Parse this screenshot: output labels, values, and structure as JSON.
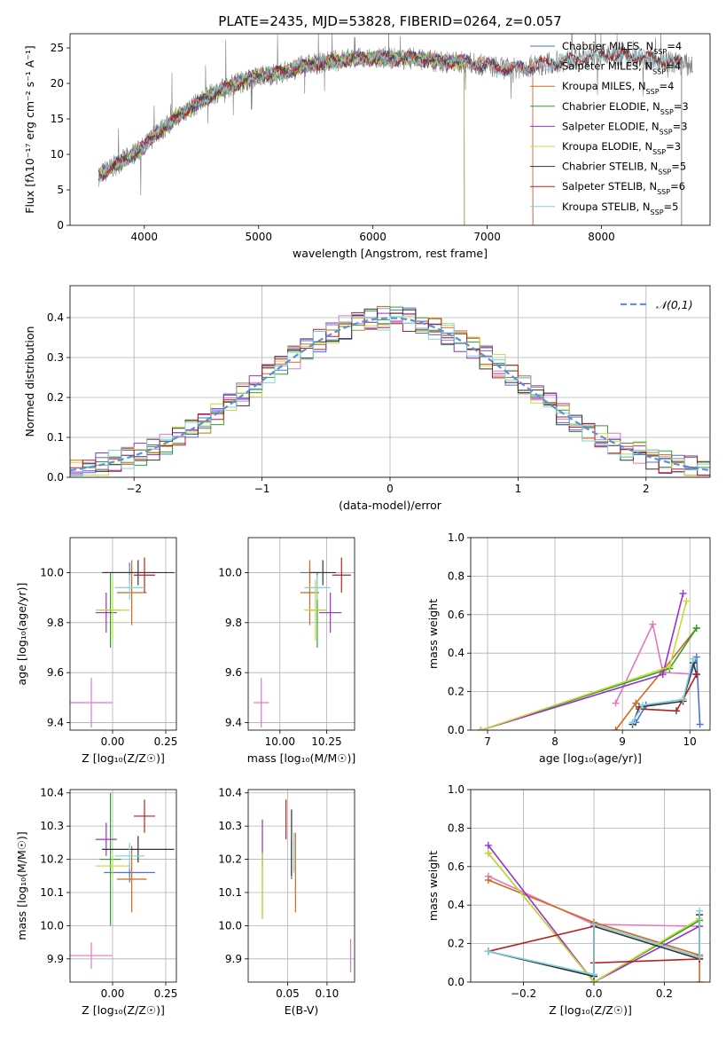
{
  "figure_title": "PLATE=2435, MJD=53828, FIBERID=0264, z=0.057",
  "colors": {
    "Chabrier MILES": "#4c72d4",
    "Salpeter MILES": "#e377c2",
    "Kroupa MILES": "#d2691e",
    "Chabrier ELODIE": "#2ca02c",
    "Salpeter ELODIE": "#9b30c8",
    "Kroupa ELODIE": "#c8d83c",
    "Chabrier STELIB": "#333333",
    "Salpeter STELIB": "#b22222",
    "Kroupa STELIB": "#7fd3dc",
    "data": "#808080",
    "normal": "#5b8fd9"
  },
  "chart_data": [
    {
      "id": "spectrum",
      "type": "line",
      "title": "PLATE=2435, MJD=53828, FIBERID=0264, z=0.057",
      "xlabel": "wavelength [Angstrom, rest frame]",
      "ylabel": "Flux [fλ10⁻¹⁷ erg cm⁻² s⁻¹ A⁻¹]",
      "xlim": [
        3350,
        8950
      ],
      "ylim": [
        0,
        27
      ],
      "xticks": [
        4000,
        5000,
        6000,
        7000,
        8000
      ],
      "yticks": [
        0,
        5,
        10,
        15,
        20,
        25
      ],
      "grid": false,
      "legend": "right",
      "legend_entries": [
        "Chabrier MILES, N_SSP=4",
        "Salpeter MILES, N_SSP=4",
        "Kroupa MILES, N_SSP=4",
        "Chabrier ELODIE, N_SSP=3",
        "Salpeter ELODIE, N_SSP=3",
        "Kroupa ELODIE, N_SSP=3",
        "Chabrier STELIB, N_SSP=5",
        "Salpeter STELIB, N_SSP=6",
        "Kroupa STELIB, N_SSP=5"
      ],
      "continuum": {
        "x": [
          3600,
          3700,
          3800,
          3900,
          4000,
          4100,
          4200,
          4300,
          4400,
          4500,
          4600,
          4800,
          5000,
          5200,
          5400,
          5600,
          5800,
          6000,
          6200,
          6400,
          6600,
          6800,
          7000,
          7200,
          7400,
          7600,
          7800,
          8000,
          8200,
          8400,
          8600,
          8800
        ],
        "y": [
          7,
          8,
          9,
          10,
          11,
          13,
          14,
          15.5,
          16.5,
          17.5,
          18.5,
          20,
          21,
          21.5,
          22.5,
          23,
          23.5,
          23.5,
          23.5,
          23.5,
          23,
          23,
          22.5,
          22,
          22.5,
          23,
          23.5,
          24,
          24,
          23.5,
          23,
          22.5
        ]
      },
      "models_end_x": {
        "MILES": 7400,
        "ELODIE": 6800,
        "STELIB": 8700
      }
    },
    {
      "id": "residuals",
      "type": "line",
      "xlabel": "(data-model)/error",
      "ylabel": "Normed distribution",
      "xlim": [
        -2.5,
        2.5
      ],
      "ylim": [
        0,
        0.48
      ],
      "xticks": [
        -2,
        -1,
        0,
        1,
        2
      ],
      "yticks": [
        0,
        0.1,
        0.2,
        0.3,
        0.4
      ],
      "grid": true,
      "legend": "top-right",
      "legend_entries": [
        "𝒩(0,1)"
      ],
      "histogram": {
        "bin_min": -2.5,
        "bin_max": 2.5,
        "nbins": 50,
        "reference": "N(0,1)"
      }
    },
    {
      "id": "age-vs-Z",
      "type": "scatter",
      "xlabel": "Z [log₁₀(Z/Z☉)]",
      "ylabel": "age  [log₁₀(age/yr)]",
      "xlim": [
        -0.2,
        0.3
      ],
      "ylim": [
        9.37,
        10.14
      ],
      "xticks": [
        0.0,
        0.25
      ],
      "xticklabels": [
        "0.00",
        "0.25"
      ],
      "yticks": [
        9.4,
        9.6,
        9.8,
        10.0
      ],
      "grid": true,
      "points": [
        {
          "model": "Chabrier MILES",
          "x": 0.08,
          "xerr": 0.12,
          "y": 10.0,
          "yerr": 0.04
        },
        {
          "model": "Salpeter MILES",
          "x": -0.1,
          "xerr": 0.1,
          "y": 9.48,
          "yerr": 0.1
        },
        {
          "model": "Kroupa MILES",
          "x": 0.09,
          "xerr": 0.07,
          "y": 9.92,
          "yerr": 0.13
        },
        {
          "model": "Chabrier ELODIE",
          "x": -0.01,
          "xerr": 0.05,
          "y": 9.85,
          "yerr": 0.15
        },
        {
          "model": "Salpeter ELODIE",
          "x": -0.03,
          "xerr": 0.05,
          "y": 9.84,
          "yerr": 0.08
        },
        {
          "model": "Kroupa ELODIE",
          "x": 0.0,
          "xerr": 0.08,
          "y": 9.85,
          "yerr": 0.12
        },
        {
          "model": "Chabrier STELIB",
          "x": 0.12,
          "xerr": 0.17,
          "y": 10.0,
          "yerr": 0.05
        },
        {
          "model": "Salpeter STELIB",
          "x": 0.15,
          "xerr": 0.05,
          "y": 9.99,
          "yerr": 0.07
        },
        {
          "model": "Kroupa STELIB",
          "x": 0.08,
          "xerr": 0.07,
          "y": 9.94,
          "yerr": 0.05
        }
      ]
    },
    {
      "id": "age-vs-mass",
      "type": "scatter",
      "xlabel": "mass [log₁₀(M/M☉)]",
      "ylabel": "",
      "xlim": [
        9.83,
        10.4
      ],
      "ylim": [
        9.37,
        10.14
      ],
      "xticks": [
        10.0,
        10.25
      ],
      "xticklabels": [
        "10.00",
        "10.25"
      ],
      "yticks": [
        9.4,
        9.6,
        9.8,
        10.0
      ],
      "grid": true,
      "points": [
        {
          "model": "Chabrier MILES",
          "x": 10.16,
          "xerr": 0.05,
          "y": 10.0,
          "yerr": 0.04
        },
        {
          "model": "Salpeter MILES",
          "x": 9.9,
          "xerr": 0.04,
          "y": 9.48,
          "yerr": 0.1
        },
        {
          "model": "Kroupa MILES",
          "x": 10.16,
          "xerr": 0.05,
          "y": 9.92,
          "yerr": 0.13
        },
        {
          "model": "Chabrier ELODIE",
          "x": 10.2,
          "xerr": 0.04,
          "y": 9.85,
          "yerr": 0.15
        },
        {
          "model": "Salpeter ELODIE",
          "x": 10.27,
          "xerr": 0.06,
          "y": 9.84,
          "yerr": 0.08
        },
        {
          "model": "Kroupa ELODIE",
          "x": 10.19,
          "xerr": 0.06,
          "y": 9.85,
          "yerr": 0.12
        },
        {
          "model": "Chabrier STELIB",
          "x": 10.23,
          "xerr": 0.07,
          "y": 10.0,
          "yerr": 0.05
        },
        {
          "model": "Salpeter STELIB",
          "x": 10.33,
          "xerr": 0.05,
          "y": 9.99,
          "yerr": 0.07
        },
        {
          "model": "Kroupa STELIB",
          "x": 10.2,
          "xerr": 0.07,
          "y": 9.94,
          "yerr": 0.05
        }
      ]
    },
    {
      "id": "weight-vs-age",
      "type": "line",
      "xlabel": "age  [log₁₀(age/yr)]",
      "ylabel": "mass weight",
      "xlim": [
        6.75,
        10.3
      ],
      "ylim": [
        0,
        1
      ],
      "xticks": [
        7,
        8,
        9,
        10
      ],
      "yticks": [
        0,
        0.2,
        0.4,
        0.6,
        0.8,
        1.0
      ],
      "grid": true,
      "series": [
        {
          "model": "Chabrier MILES",
          "x": [
            9.2,
            9.35,
            9.9,
            10.1,
            10.15
          ],
          "y": [
            0.04,
            0.13,
            0.16,
            0.38,
            0.03
          ]
        },
        {
          "model": "Salpeter MILES",
          "x": [
            8.9,
            9.45,
            9.6,
            10.1
          ],
          "y": [
            0.14,
            0.55,
            0.3,
            0.29
          ]
        },
        {
          "model": "Kroupa MILES",
          "x": [
            8.9,
            9.2,
            9.6,
            10.1
          ],
          "y": [
            0.0,
            0.14,
            0.31,
            0.53
          ]
        },
        {
          "model": "Chabrier ELODIE",
          "x": [
            6.9,
            9.7,
            10.1
          ],
          "y": [
            0.0,
            0.32,
            0.53
          ]
        },
        {
          "model": "Salpeter ELODIE",
          "x": [
            6.9,
            9.6,
            9.9
          ],
          "y": [
            0.0,
            0.29,
            0.71
          ]
        },
        {
          "model": "Kroupa ELODIE",
          "x": [
            6.9,
            9.7,
            9.95
          ],
          "y": [
            0.0,
            0.33,
            0.67
          ]
        },
        {
          "model": "Chabrier STELIB",
          "x": [
            9.15,
            9.25,
            9.9,
            10.05,
            10.1
          ],
          "y": [
            0.03,
            0.12,
            0.15,
            0.35,
            0.29
          ]
        },
        {
          "model": "Salpeter STELIB",
          "x": [
            9.25,
            9.8,
            9.9,
            10.1
          ],
          "y": [
            0.11,
            0.1,
            0.16,
            0.29
          ]
        },
        {
          "model": "Kroupa STELIB",
          "x": [
            9.15,
            9.3,
            9.9,
            10.05
          ],
          "y": [
            0.04,
            0.13,
            0.16,
            0.37
          ]
        }
      ]
    },
    {
      "id": "mass-vs-Z",
      "type": "scatter",
      "xlabel": "Z [log₁₀(Z/Z☉)]",
      "ylabel": "mass [log₁₀(M/M☉)]",
      "xlim": [
        -0.2,
        0.3
      ],
      "ylim": [
        9.83,
        10.41
      ],
      "xticks": [
        0.0,
        0.25
      ],
      "xticklabels": [
        "0.00",
        "0.25"
      ],
      "yticks": [
        9.9,
        10.0,
        10.1,
        10.2,
        10.3,
        10.4
      ],
      "grid": true,
      "points": [
        {
          "model": "Chabrier MILES",
          "x": 0.08,
          "xerr": 0.12,
          "y": 10.16,
          "yerr": 0.03
        },
        {
          "model": "Salpeter MILES",
          "x": -0.1,
          "xerr": 0.1,
          "y": 9.91,
          "yerr": 0.04
        },
        {
          "model": "Kroupa MILES",
          "x": 0.09,
          "xerr": 0.07,
          "y": 10.14,
          "yerr": 0.1
        },
        {
          "model": "Chabrier ELODIE",
          "x": -0.01,
          "xerr": 0.05,
          "y": 10.2,
          "yerr": 0.2
        },
        {
          "model": "Salpeter ELODIE",
          "x": -0.03,
          "xerr": 0.05,
          "y": 10.26,
          "yerr": 0.05
        },
        {
          "model": "Kroupa ELODIE",
          "x": 0.0,
          "xerr": 0.08,
          "y": 10.18,
          "yerr": 0.03
        },
        {
          "model": "Chabrier STELIB",
          "x": 0.12,
          "xerr": 0.17,
          "y": 10.23,
          "yerr": 0.04
        },
        {
          "model": "Salpeter STELIB",
          "x": 0.15,
          "xerr": 0.05,
          "y": 10.33,
          "yerr": 0.05
        },
        {
          "model": "Kroupa STELIB",
          "x": 0.08,
          "xerr": 0.07,
          "y": 10.21,
          "yerr": 0.04
        }
      ]
    },
    {
      "id": "mass-vs-EBV",
      "type": "scatter",
      "xlabel": "E(B-V)",
      "ylabel": "",
      "xlim": [
        0.0,
        0.135
      ],
      "ylim": [
        9.83,
        10.41
      ],
      "xticks": [
        0.05,
        0.1
      ],
      "xticklabels": [
        "0.05",
        "0.10"
      ],
      "yticks": [
        9.9,
        10.0,
        10.1,
        10.2,
        10.3,
        10.4
      ],
      "grid": true,
      "points": [
        {
          "model": "Chabrier MILES",
          "x": 0.055,
          "y": 10.2,
          "yerr": 0.06
        },
        {
          "model": "Salpeter MILES",
          "x": 0.13,
          "y": 9.91,
          "yerr": 0.05
        },
        {
          "model": "Kroupa MILES",
          "x": 0.06,
          "y": 10.16,
          "yerr": 0.12
        },
        {
          "model": "Chabrier ELODIE",
          "x": 0.018,
          "y": 10.12,
          "yerr": 0.1
        },
        {
          "model": "Salpeter ELODIE",
          "x": 0.018,
          "y": 10.25,
          "yerr": 0.07
        },
        {
          "model": "Kroupa ELODIE",
          "x": 0.018,
          "y": 10.12,
          "yerr": 0.1
        },
        {
          "model": "Chabrier STELIB",
          "x": 0.055,
          "y": 10.25,
          "yerr": 0.1
        },
        {
          "model": "Salpeter STELIB",
          "x": 0.048,
          "y": 10.32,
          "yerr": 0.06
        },
        {
          "model": "Kroupa STELIB",
          "x": 0.058,
          "y": 10.22,
          "yerr": 0.06
        }
      ]
    },
    {
      "id": "weight-vs-Z",
      "type": "line",
      "xlabel": "Z [log₁₀(Z/Z☉)]",
      "ylabel": "mass weight",
      "xlim": [
        -0.35,
        0.33
      ],
      "ylim": [
        0,
        1
      ],
      "xticks": [
        -0.2,
        0.0,
        0.2
      ],
      "xticklabels": [
        "−0.2",
        "0.0",
        "0.2"
      ],
      "yticks": [
        0,
        0.2,
        0.4,
        0.6,
        0.8,
        1.0
      ],
      "grid": true,
      "series": [
        {
          "model": "Chabrier MILES",
          "x": [
            -0.3,
            0.0,
            0.0,
            0.3,
            0.3
          ],
          "y": [
            0.16,
            0.03,
            0.3,
            0.13,
            0.35
          ]
        },
        {
          "model": "Salpeter MILES",
          "x": [
            -0.3,
            0.0,
            0.3,
            0.3
          ],
          "y": [
            0.55,
            0.3,
            0.29,
            0.14
          ]
        },
        {
          "model": "Kroupa MILES",
          "x": [
            -0.3,
            0.0,
            0.3,
            0.3
          ],
          "y": [
            0.53,
            0.31,
            0.14,
            0.0
          ]
        },
        {
          "model": "Chabrier ELODIE",
          "x": [
            -0.3,
            0.0,
            0.3
          ],
          "y": [
            0.67,
            0.0,
            0.32
          ]
        },
        {
          "model": "Salpeter ELODIE",
          "x": [
            -0.3,
            0.0,
            0.3
          ],
          "y": [
            0.71,
            0.0,
            0.29
          ]
        },
        {
          "model": "Kroupa ELODIE",
          "x": [
            -0.3,
            0.0,
            0.3
          ],
          "y": [
            0.67,
            0.0,
            0.33
          ]
        },
        {
          "model": "Chabrier STELIB",
          "x": [
            -0.3,
            0.0,
            0.0,
            0.3,
            0.3
          ],
          "y": [
            0.16,
            0.03,
            0.29,
            0.12,
            0.35
          ]
        },
        {
          "model": "Salpeter STELIB",
          "x": [
            -0.3,
            0.0,
            0.0,
            0.3,
            0.3
          ],
          "y": [
            0.16,
            0.29,
            0.1,
            0.12,
            0.12
          ]
        },
        {
          "model": "Kroupa STELIB",
          "x": [
            -0.3,
            0.0,
            0.0,
            0.3,
            0.3
          ],
          "y": [
            0.16,
            0.04,
            0.3,
            0.13,
            0.37
          ]
        }
      ]
    }
  ]
}
